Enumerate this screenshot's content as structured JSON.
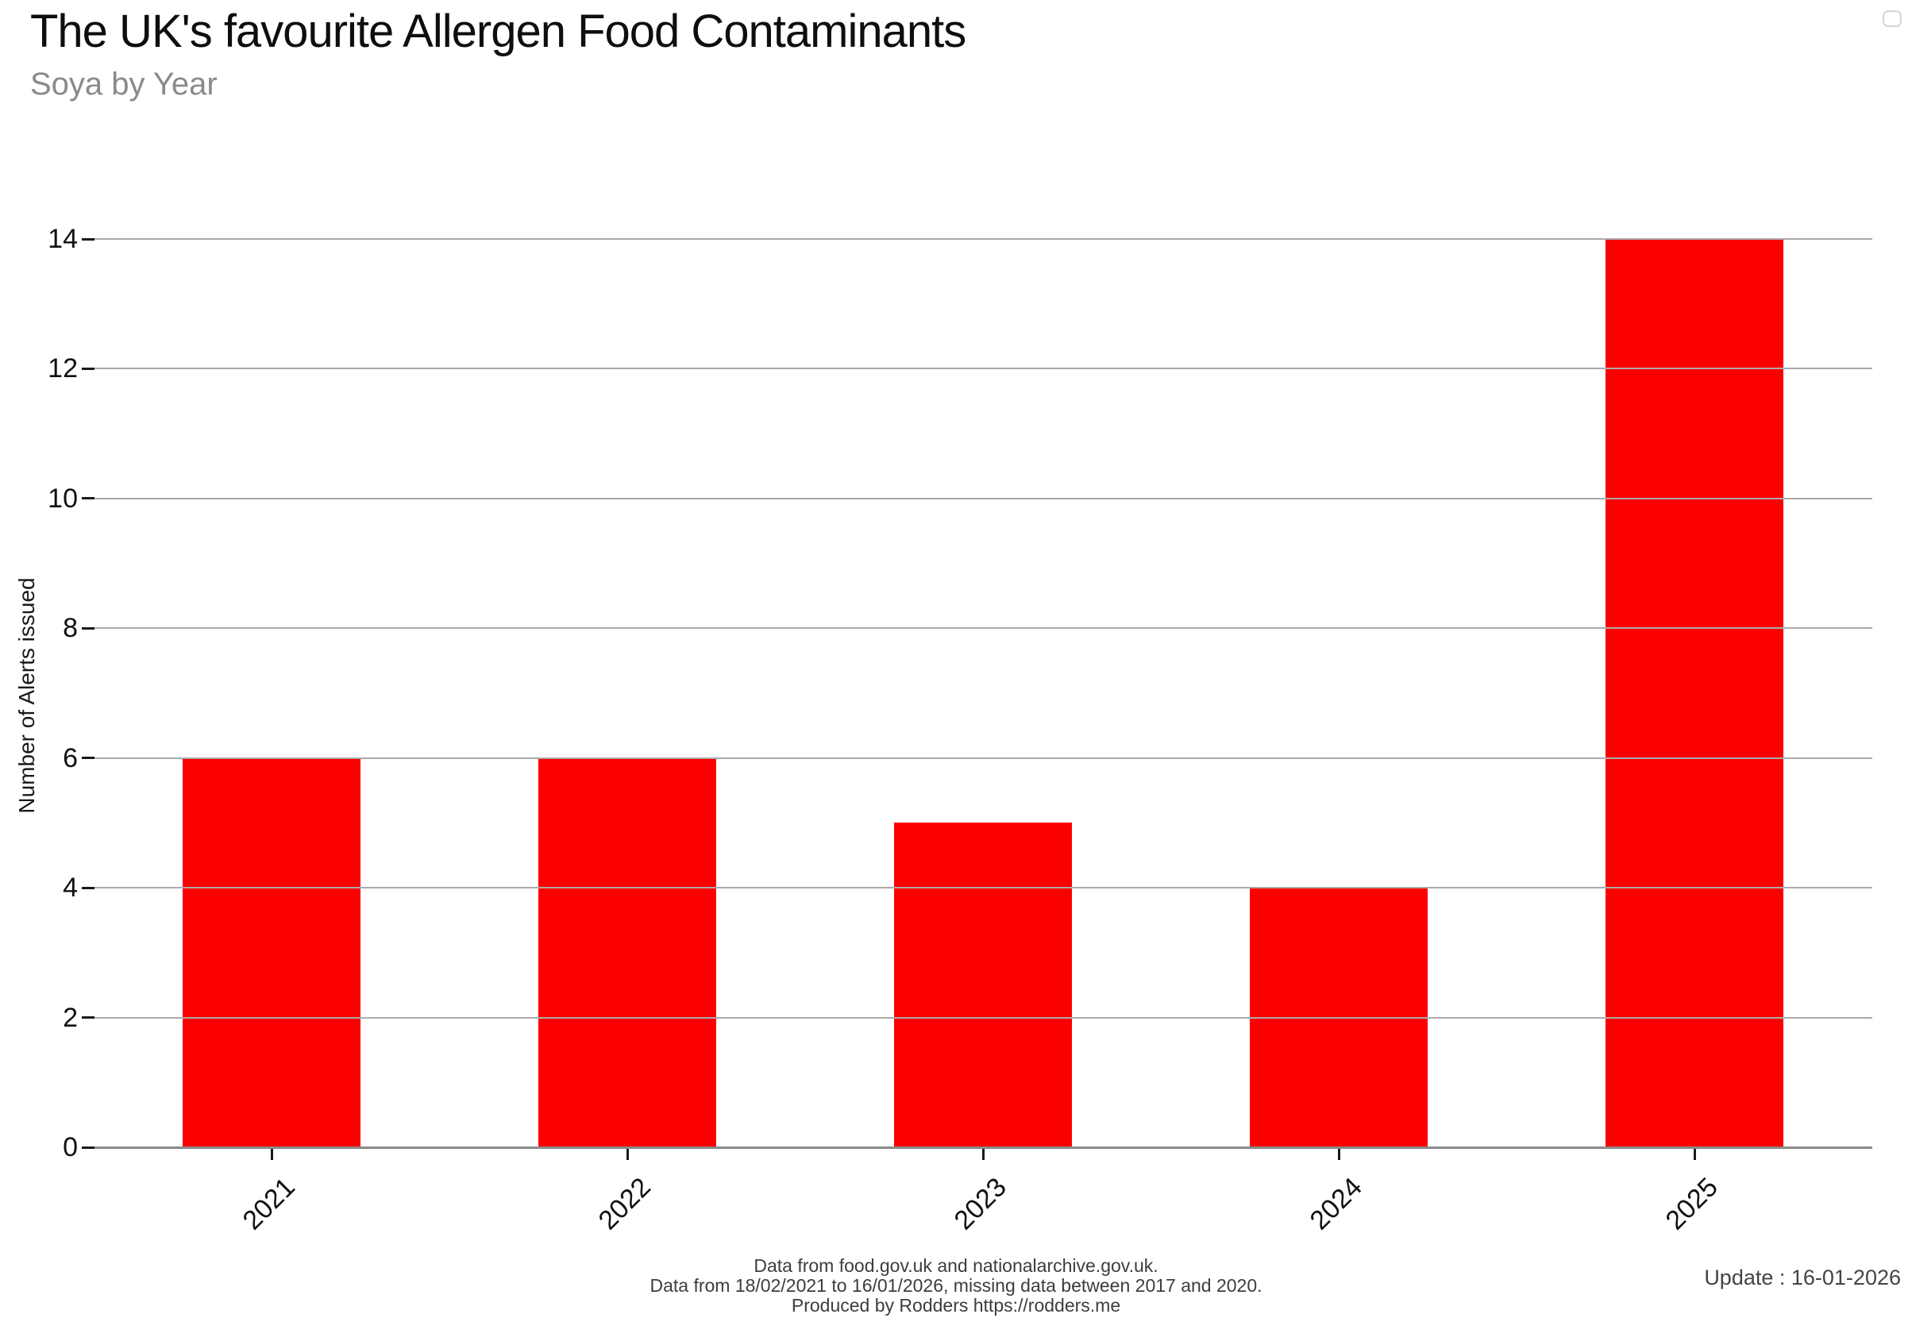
{
  "header": {
    "title": "The UK's favourite Allergen Food Contaminants",
    "subtitle": "Soya by Year",
    "title_color": "#0e0e0e",
    "subtitle_color": "#8a8a8a"
  },
  "toolbar": {
    "mode_button": "rounded-square-outline"
  },
  "chart_data": {
    "type": "bar",
    "title": "The UK's favourite Allergen Food Contaminants",
    "subtitle": "Soya by Year",
    "categories": [
      "2021",
      "2022",
      "2023",
      "2024",
      "2025"
    ],
    "values": [
      6,
      6,
      5,
      4,
      14
    ],
    "xlabel": "",
    "ylabel": "Number of Alerts issued",
    "ylim": [
      0,
      14
    ],
    "yticks": [
      0,
      2,
      4,
      6,
      8,
      10,
      12,
      14
    ],
    "bar_color": "#fb0000",
    "grid": true,
    "gridline_color": "#aaaaaa",
    "axis_line_color": "#8a8a8a",
    "x_tick_label_rotation_deg": 45,
    "legend": "none"
  },
  "footer": {
    "lines": [
      "Data from food.gov.uk and nationalarchive.gov.uk.",
      "Data from 18/02/2021 to 16/01/2026, missing data between 2017 and 2020.",
      "Produced by Rodders https://rodders.me"
    ],
    "update_label": "Update : 16-01-2026"
  }
}
